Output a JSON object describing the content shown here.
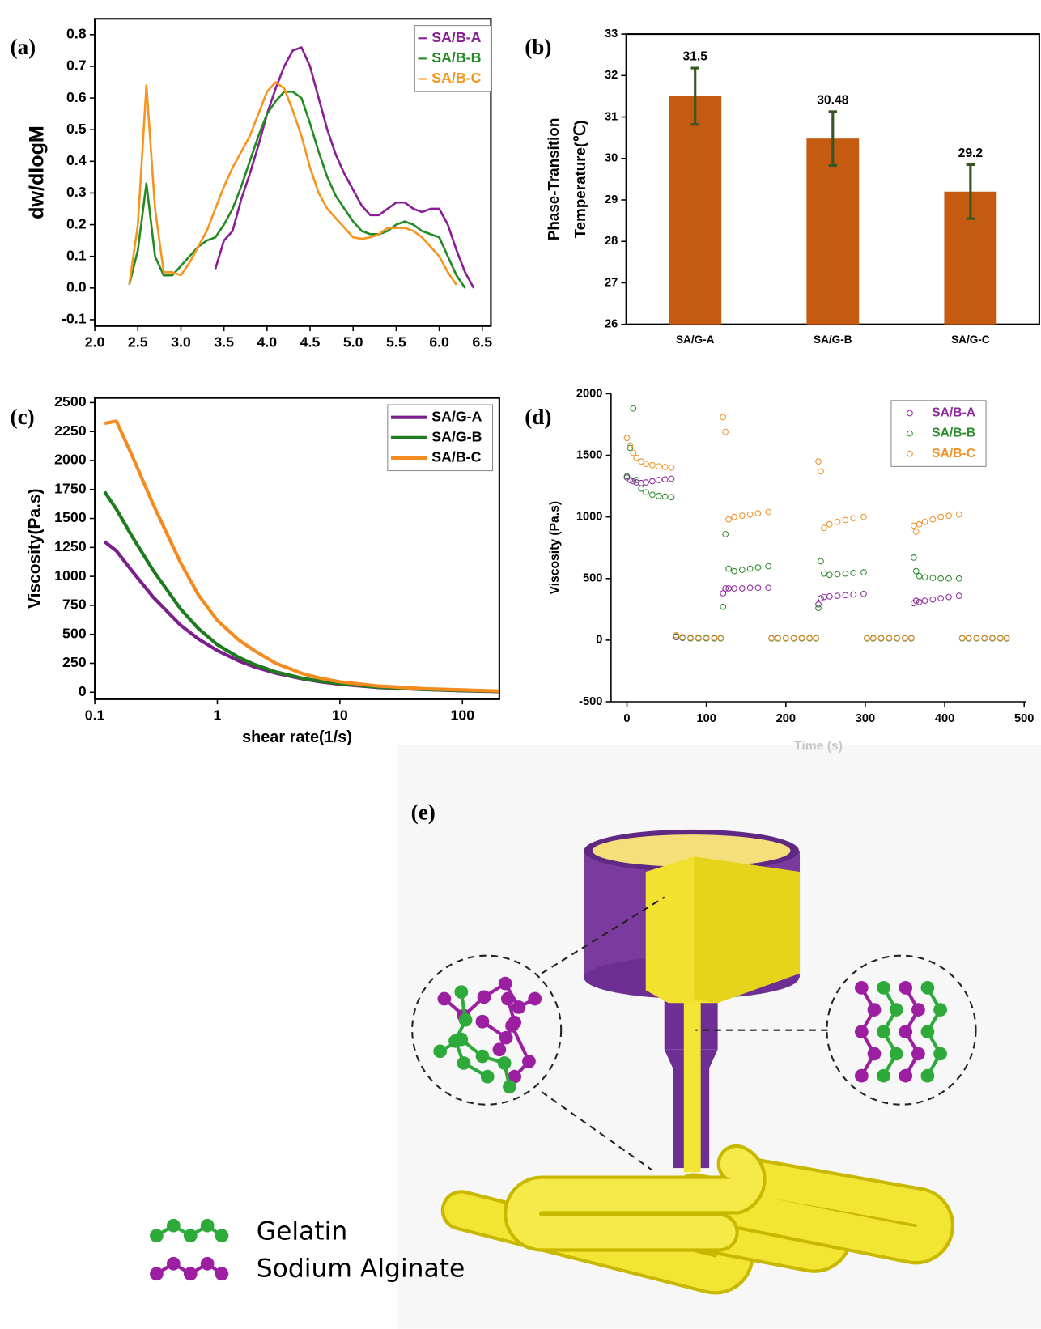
{
  "chart_data": [
    {
      "type": "line",
      "panel_label": "(a)",
      "ylabel": "dw/dlogM",
      "x": [
        2.4,
        2.5,
        2.6,
        2.7,
        2.8,
        2.9,
        3.0,
        3.1,
        3.2,
        3.3,
        3.4,
        3.5,
        3.6,
        3.7,
        3.8,
        3.9,
        4.0,
        4.1,
        4.2,
        4.3,
        4.4,
        4.5,
        4.6,
        4.7,
        4.8,
        4.9,
        5.0,
        5.1,
        5.2,
        5.3,
        5.4,
        5.5,
        5.6,
        5.7,
        5.8,
        5.9,
        6.0,
        6.1,
        6.2,
        6.3,
        6.4
      ],
      "series": [
        {
          "name": "SA/B-A",
          "color": "#8a1d96",
          "values": [
            null,
            null,
            null,
            null,
            null,
            null,
            null,
            null,
            null,
            null,
            0.06,
            0.15,
            0.18,
            0.28,
            0.36,
            0.45,
            0.55,
            0.63,
            0.7,
            0.75,
            0.76,
            0.7,
            0.6,
            0.5,
            0.42,
            0.36,
            0.31,
            0.26,
            0.23,
            0.23,
            0.25,
            0.27,
            0.27,
            0.25,
            0.24,
            0.25,
            0.25,
            0.2,
            0.12,
            0.05,
            0.0
          ]
        },
        {
          "name": "SA/B-B",
          "color": "#228b22",
          "values": [
            0.01,
            0.12,
            0.33,
            0.1,
            0.04,
            0.04,
            0.07,
            0.1,
            0.13,
            0.15,
            0.16,
            0.2,
            0.25,
            0.32,
            0.4,
            0.48,
            0.55,
            0.59,
            0.62,
            0.62,
            0.6,
            0.52,
            0.43,
            0.35,
            0.29,
            0.25,
            0.21,
            0.18,
            0.17,
            0.17,
            0.18,
            0.2,
            0.21,
            0.2,
            0.18,
            0.17,
            0.16,
            0.1,
            0.04,
            0.0,
            null
          ]
        },
        {
          "name": "SA/B-C",
          "color": "#f7941d",
          "values": [
            0.01,
            0.2,
            0.64,
            0.25,
            0.05,
            0.05,
            0.04,
            0.08,
            0.13,
            0.18,
            0.25,
            0.32,
            0.38,
            0.43,
            0.48,
            0.55,
            0.62,
            0.65,
            0.63,
            0.56,
            0.48,
            0.38,
            0.3,
            0.25,
            0.22,
            0.19,
            0.16,
            0.155,
            0.16,
            0.17,
            0.19,
            0.19,
            0.19,
            0.18,
            0.16,
            0.13,
            0.1,
            0.05,
            0.01,
            null,
            null
          ]
        }
      ],
      "xlim": [
        2.0,
        6.6
      ],
      "ylim": [
        -0.12,
        0.85
      ],
      "xticks": [
        {
          "value": 2,
          "label": "2.0"
        },
        2.5,
        {
          "value": 3,
          "label": "3.0"
        },
        3.5,
        {
          "value": 4,
          "label": "4.0"
        },
        4.5,
        {
          "value": 5,
          "label": "5.0"
        },
        5.5,
        {
          "value": 6,
          "label": "6.0"
        },
        6.5
      ],
      "yticks": [
        -0.1,
        {
          "value": 0,
          "label": "0.0"
        },
        0.1,
        0.2,
        0.3,
        0.4,
        0.5,
        0.6,
        0.7,
        0.8
      ],
      "legend": "upper right",
      "grid": false
    },
    {
      "type": "bar",
      "panel_label": "(b)",
      "ylabel": [
        "Phase-Transition",
        "Temperature(℃)"
      ],
      "categories": [
        "SA/G-A",
        "SA/G-B",
        "SA/G-C"
      ],
      "values": [
        31.5,
        30.48,
        29.2
      ],
      "errors": [
        0.68,
        0.65,
        0.65
      ],
      "color": "#c55a11",
      "error_color": "#375623",
      "data_labels": true,
      "ylim": [
        26,
        33
      ],
      "yticks": [
        26,
        27,
        28,
        29,
        30,
        31,
        32,
        33
      ],
      "grid": false
    },
    {
      "type": "line",
      "panel_label": "(c)",
      "xlabel": "shear rate(1/s)",
      "ylabel": "Viscosity(Pa.s)",
      "xscale": "log",
      "x": [
        0.12,
        0.15,
        0.2,
        0.3,
        0.5,
        0.7,
        1,
        1.5,
        2,
        3,
        5,
        7,
        10,
        20,
        50,
        100,
        200
      ],
      "series": [
        {
          "name": "SA/G-A",
          "color": "#7b1f8c",
          "values": [
            1300,
            1220,
            1050,
            820,
            580,
            460,
            360,
            270,
            220,
            165,
            115,
            90,
            70,
            42,
            23,
            13,
            6
          ]
        },
        {
          "name": "SA/G-B",
          "color": "#1e7b1e",
          "values": [
            1730,
            1580,
            1350,
            1050,
            720,
            550,
            410,
            300,
            240,
            175,
            120,
            95,
            75,
            45,
            25,
            15,
            8
          ]
        },
        {
          "name": "SA/B-C",
          "color": "#f58a1f",
          "values": [
            2320,
            2340,
            2050,
            1620,
            1120,
            840,
            620,
            450,
            360,
            250,
            160,
            120,
            90,
            55,
            30,
            20,
            10
          ]
        }
      ],
      "xlim": [
        0.1,
        200
      ],
      "ylim": [
        -60,
        2540
      ],
      "xticks": [
        0.1,
        1,
        10,
        100
      ],
      "yticks": [
        0,
        250,
        500,
        750,
        1000,
        1250,
        1500,
        1750,
        2000,
        2250,
        2500
      ],
      "legend": "upper right",
      "grid": false
    },
    {
      "type": "scatter",
      "panel_label": "(d)",
      "xlabel": "Time (s)",
      "ylabel": "Viscosity (Pa.s)",
      "x": [
        0,
        4,
        8,
        12,
        18,
        24,
        32,
        40,
        48,
        56,
        62,
        70,
        80,
        90,
        100,
        110,
        118,
        121,
        124,
        128,
        135,
        145,
        155,
        165,
        178,
        182,
        190,
        200,
        210,
        220,
        230,
        238,
        241,
        244,
        248,
        255,
        265,
        275,
        285,
        298,
        302,
        310,
        320,
        330,
        340,
        350,
        358,
        361,
        364,
        368,
        375,
        385,
        395,
        405,
        418,
        422,
        430,
        440,
        450,
        460,
        470,
        478
      ],
      "series": [
        {
          "name": "SA/B-A",
          "color": "#8e2a9e",
          "values": [
            1320,
            1300,
            1290,
            1280,
            1275,
            1280,
            1290,
            1300,
            1305,
            1310,
            25,
            18,
            15,
            15,
            15,
            15,
            15,
            380,
            420,
            420,
            420,
            420,
            425,
            425,
            425,
            15,
            15,
            15,
            15,
            15,
            15,
            15,
            290,
            340,
            350,
            355,
            360,
            365,
            370,
            375,
            15,
            15,
            15,
            15,
            15,
            15,
            15,
            300,
            320,
            310,
            320,
            330,
            340,
            350,
            360,
            15,
            15,
            15,
            15,
            15,
            15,
            15
          ]
        },
        {
          "name": "SA/B-B",
          "color": "#2e8b2e",
          "values": [
            1330,
            1560,
            1880,
            1300,
            1230,
            1200,
            1180,
            1170,
            1165,
            1160,
            30,
            20,
            15,
            15,
            15,
            15,
            15,
            270,
            860,
            580,
            560,
            570,
            580,
            590,
            600,
            15,
            15,
            15,
            15,
            15,
            15,
            15,
            260,
            640,
            540,
            530,
            535,
            540,
            545,
            550,
            15,
            15,
            15,
            15,
            15,
            15,
            15,
            670,
            560,
            520,
            510,
            505,
            500,
            500,
            500,
            15,
            15,
            15,
            15,
            15,
            15,
            15
          ]
        },
        {
          "name": "SA/B-C",
          "color": "#f0922b",
          "values": [
            1640,
            1580,
            1520,
            1480,
            1450,
            1430,
            1420,
            1410,
            1405,
            1400,
            40,
            25,
            20,
            20,
            20,
            20,
            18,
            1810,
            1690,
            980,
            1000,
            1010,
            1020,
            1030,
            1040,
            18,
            18,
            18,
            18,
            18,
            18,
            18,
            1450,
            1370,
            910,
            940,
            960,
            975,
            990,
            1000,
            18,
            18,
            18,
            18,
            18,
            18,
            18,
            930,
            880,
            940,
            960,
            980,
            1000,
            1010,
            1020,
            18,
            18,
            18,
            18,
            18,
            18,
            18
          ]
        }
      ],
      "xlim": [
        -20,
        502
      ],
      "ylim": [
        -500,
        2000
      ],
      "xticks": [
        0,
        100,
        200,
        300,
        400,
        500
      ],
      "yticks": [
        -500,
        0,
        500,
        1000,
        1500,
        2000
      ],
      "legend": "upper right",
      "grid": false
    }
  ],
  "diagram": {
    "panel_label": "(e)",
    "legend": [
      "Gelatin",
      "Sodium Alginate"
    ]
  }
}
